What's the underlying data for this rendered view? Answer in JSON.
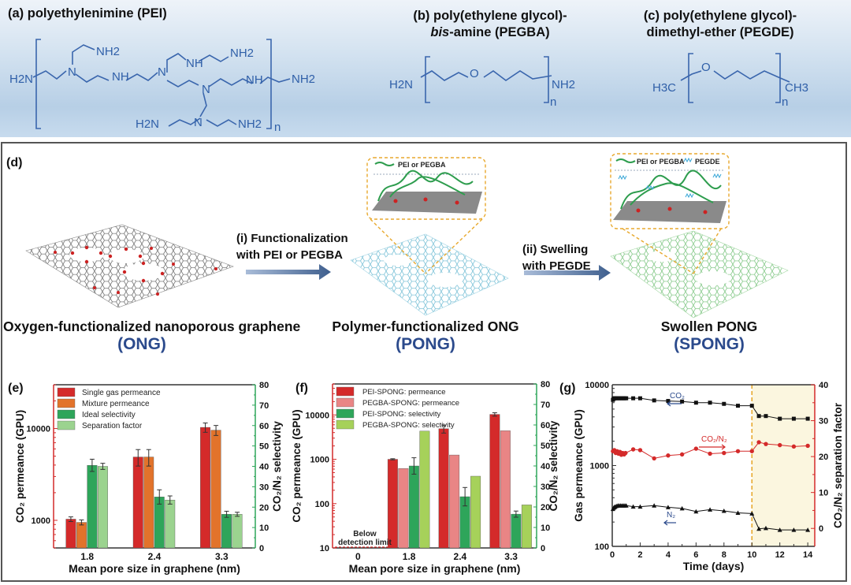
{
  "structures": {
    "a": {
      "title": "(a) polyethylenimine (PEI)",
      "labels": [
        "H2N",
        "NH2",
        "N",
        "N",
        "NH",
        "N",
        "N",
        "NH",
        "NH2",
        "NH",
        "N",
        "NH2",
        "H2N",
        "NH2",
        "n"
      ]
    },
    "b": {
      "title_line1": "(b) poly(ethylene glycol)-",
      "title_line2_italic": "bis",
      "title_line2_rest": "-amine (PEGBA)",
      "labels": [
        "H2N",
        "O",
        "NH2",
        "n"
      ]
    },
    "c": {
      "title_line1": "(c) poly(ethylene glycol)-",
      "title_line2": "dimethyl-ether (PEGDE)",
      "labels": [
        "H3C",
        "O",
        "CH3",
        "n"
      ]
    }
  },
  "scheme": {
    "panel_label": "(d)",
    "step1_line1": "(i) Functionalization",
    "step1_line2": "with PEI or PEGBA",
    "step2_line1": "(ii) Swelling",
    "step2_line2": "with PEGDE",
    "stages": [
      {
        "caption": "Oxygen-functionalized  nanoporous graphene",
        "abbr": "(ONG)"
      },
      {
        "caption": "Polymer-functionalized ONG",
        "abbr": "(PONG)"
      },
      {
        "caption": "Swollen PONG",
        "abbr": "(SPONG)"
      }
    ],
    "inset1_legend": "PEI or PEGBA",
    "inset2_legend_a": "PEI or PEGBA",
    "inset2_legend_b": "PEGDE"
  },
  "colors": {
    "red": "#d42a2a",
    "orange": "#e2732b",
    "green": "#2ea55a",
    "lightgreen": "#9bd38f",
    "pink": "#e98585",
    "yellowgreen": "#a6d15a",
    "blue": "#2b4a8c",
    "highlight": "#fbf6df",
    "dash": "#e8a92e"
  },
  "chart_data": [
    {
      "panel": "(e)",
      "type": "bar",
      "categories": [
        "1.8",
        "2.4",
        "3.3"
      ],
      "xlabel": "Mean pore size in graphene (nm)",
      "ylabel": "CO2 permeance (GPU)",
      "y2label": "CO2/N2 selectivity",
      "yscale": "log",
      "ylim": [
        500,
        30000
      ],
      "yticks": [
        "1000",
        "10000"
      ],
      "y2lim": [
        0,
        80
      ],
      "y2ticks": [
        "0",
        "10",
        "20",
        "30",
        "40",
        "50",
        "60",
        "70",
        "80"
      ],
      "legend": "top-left",
      "series": [
        {
          "name": "Single gas permeance",
          "axis": "left",
          "color": "#d42a2a",
          "values": [
            1030,
            4900,
            10300
          ],
          "errors": [
            60,
            1000,
            1200
          ]
        },
        {
          "name": "Mixture permeance",
          "axis": "left",
          "color": "#e2732b",
          "values": [
            950,
            4900,
            9600
          ],
          "errors": [
            60,
            1000,
            1200
          ]
        },
        {
          "name": "Ideal selectivity",
          "axis": "right",
          "color": "#2ea55a",
          "values": [
            40.5,
            25,
            16.5
          ],
          "errors": [
            3,
            3.5,
            1.5
          ]
        },
        {
          "name": "Separation factor",
          "axis": "right",
          "color": "#9bd38f",
          "values": [
            40,
            23.5,
            16.5
          ],
          "errors": [
            1.5,
            2,
            1
          ]
        }
      ]
    },
    {
      "panel": "(f)",
      "type": "bar",
      "categories": [
        "0",
        "1.8",
        "2.4",
        "3.3"
      ],
      "xlabel": "Mean pore size in graphene (nm)",
      "ylabel": "CO2 permeance (GPU)",
      "y2label": "CO2/N2 selectivity",
      "yscale": "log",
      "ylim": [
        10,
        50000
      ],
      "yticks": [
        "10",
        "100",
        "1000",
        "10000"
      ],
      "y2lim": [
        0,
        80
      ],
      "y2ticks": [
        "0",
        "10",
        "20",
        "30",
        "40",
        "50",
        "60",
        "70",
        "80"
      ],
      "annotation_line1": "Below",
      "annotation_line2": "detection limit",
      "legend": "top-left",
      "series": [
        {
          "name": "PEI-SPONG: permeance",
          "axis": "left",
          "color": "#d42a2a",
          "values": [
            null,
            1000,
            4900,
            10300
          ],
          "errors": [
            null,
            30,
            1000,
            900
          ]
        },
        {
          "name": "PEGBA-SPONG: permeance",
          "axis": "left",
          "color": "#e98585",
          "values": [
            null,
            620,
            1250,
            4400
          ],
          "errors": [
            null,
            null,
            null,
            null
          ]
        },
        {
          "name": "PEI-SPONG: selectivity",
          "axis": "right",
          "color": "#2ea55a",
          "values": [
            null,
            40,
            25,
            16.5
          ],
          "errors": [
            null,
            4,
            4.5,
            1.5
          ]
        },
        {
          "name": "PEGBA-SPONG: selectivity",
          "axis": "right",
          "color": "#a6d15a",
          "values": [
            null,
            57,
            35,
            21
          ],
          "errors": [
            null,
            null,
            null,
            null
          ]
        }
      ]
    },
    {
      "panel": "(g)",
      "type": "line",
      "xlabel": "Time (days)",
      "ylabel": "Gas permeance (GPU)",
      "y2label": "CO2/N2 separation factor",
      "xlim": [
        0,
        14.5
      ],
      "xticks": [
        "0",
        "2",
        "4",
        "6",
        "8",
        "10",
        "12",
        "14"
      ],
      "yscale": "log",
      "ylim": [
        100,
        10000
      ],
      "yticks": [
        "100",
        "1000",
        "10000"
      ],
      "y2lim": [
        -5,
        40
      ],
      "y2ticks": [
        "0",
        "10",
        "20",
        "30",
        "40"
      ],
      "highlight_from_day": 10,
      "annotations": [
        "CO2",
        "CO2/N2",
        "N2"
      ],
      "series": [
        {
          "name": "CO2",
          "axis": "left",
          "color": "#111111",
          "marker": "square",
          "x": [
            0.05,
            0.1,
            0.15,
            0.2,
            0.3,
            0.4,
            0.5,
            0.6,
            0.7,
            0.8,
            0.9,
            1.0,
            1.5,
            2,
            3,
            4,
            5,
            6,
            7,
            8,
            9,
            10,
            10.5,
            11,
            12,
            13,
            14
          ],
          "y": [
            6500,
            6700,
            6800,
            6800,
            6800,
            6800,
            6800,
            6800,
            6800,
            6800,
            6800,
            6800,
            6800,
            6800,
            6400,
            6300,
            6200,
            6000,
            6000,
            5800,
            5500,
            5500,
            4100,
            4100,
            3800,
            3800,
            3800
          ]
        },
        {
          "name": "N2",
          "axis": "left",
          "color": "#111111",
          "marker": "triangle",
          "x": [
            0.05,
            0.1,
            0.15,
            0.2,
            0.3,
            0.4,
            0.5,
            0.6,
            0.7,
            0.8,
            0.9,
            1.0,
            1.5,
            2,
            3,
            4,
            5,
            6,
            7,
            8,
            9,
            10,
            10.5,
            11,
            12,
            13,
            14
          ],
          "y": [
            290,
            300,
            305,
            310,
            315,
            320,
            320,
            320,
            320,
            320,
            320,
            320,
            310,
            310,
            320,
            305,
            295,
            270,
            285,
            275,
            260,
            255,
            165,
            168,
            160,
            160,
            160
          ]
        },
        {
          "name": "CO2/N2",
          "axis": "right",
          "color": "#d42a2a",
          "marker": "circle",
          "x": [
            0.05,
            0.15,
            0.25,
            0.35,
            0.45,
            0.55,
            0.65,
            0.75,
            0.85,
            0.95,
            1.5,
            2,
            3,
            4,
            5,
            6,
            7,
            8,
            9,
            10,
            10.5,
            11,
            12,
            13,
            14
          ],
          "y": [
            21.5,
            21.8,
            21,
            21.5,
            20.8,
            21.3,
            20.5,
            21,
            20.6,
            21,
            22,
            21.8,
            19.5,
            20.3,
            20.6,
            22.2,
            20.8,
            21,
            21.5,
            21.5,
            24,
            23.5,
            23.2,
            22.8,
            23
          ]
        }
      ]
    }
  ]
}
